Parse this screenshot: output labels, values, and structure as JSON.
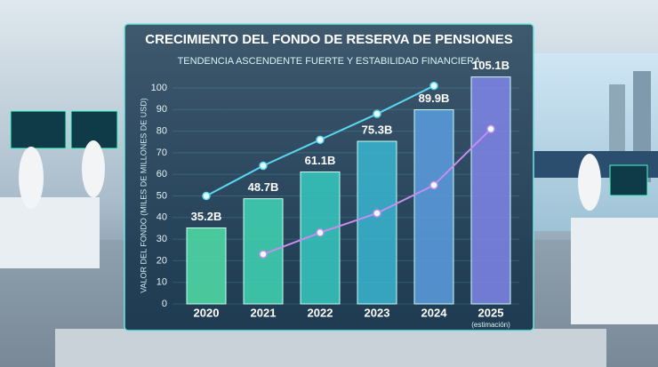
{
  "chart_data": {
    "type": "bar",
    "title": "CRECIMIENTO DEL FONDO DE RESERVA DE PENSIONES",
    "subtitle": "TENDENCIA ASCENDENTE FUERTE Y ESTABILIDAD FINANCIERA",
    "y_label": "VALOR DEL FONDO (MILES DE MILLONES DE USD)",
    "categories": [
      "2020",
      "2021",
      "2022",
      "2023",
      "2024",
      "2025"
    ],
    "annotation": "(estimación)",
    "values": [
      35.2,
      48.7,
      61.1,
      75.3,
      89.9,
      105.1
    ],
    "value_labels": [
      "35.2B",
      "48.7B",
      "61.1B",
      "75.3B",
      "89.9B",
      "105.1B"
    ],
    "colors": [
      "#4fe0a8",
      "#3fd6b4",
      "#36c9c0",
      "#3ab6d0",
      "#5a9ee0",
      "#7f86e8"
    ],
    "lines": [
      {
        "color": "#5ad7f0",
        "values": [
          50,
          64,
          76,
          88,
          101,
          null
        ]
      },
      {
        "color": "#c98cf0",
        "values": [
          null,
          23,
          33,
          42,
          55,
          81
        ]
      }
    ],
    "ylim": [
      0,
      100
    ],
    "yticks": [
      0,
      10,
      20,
      30,
      40,
      50,
      60,
      70,
      80,
      90,
      100
    ],
    "grid": true
  }
}
